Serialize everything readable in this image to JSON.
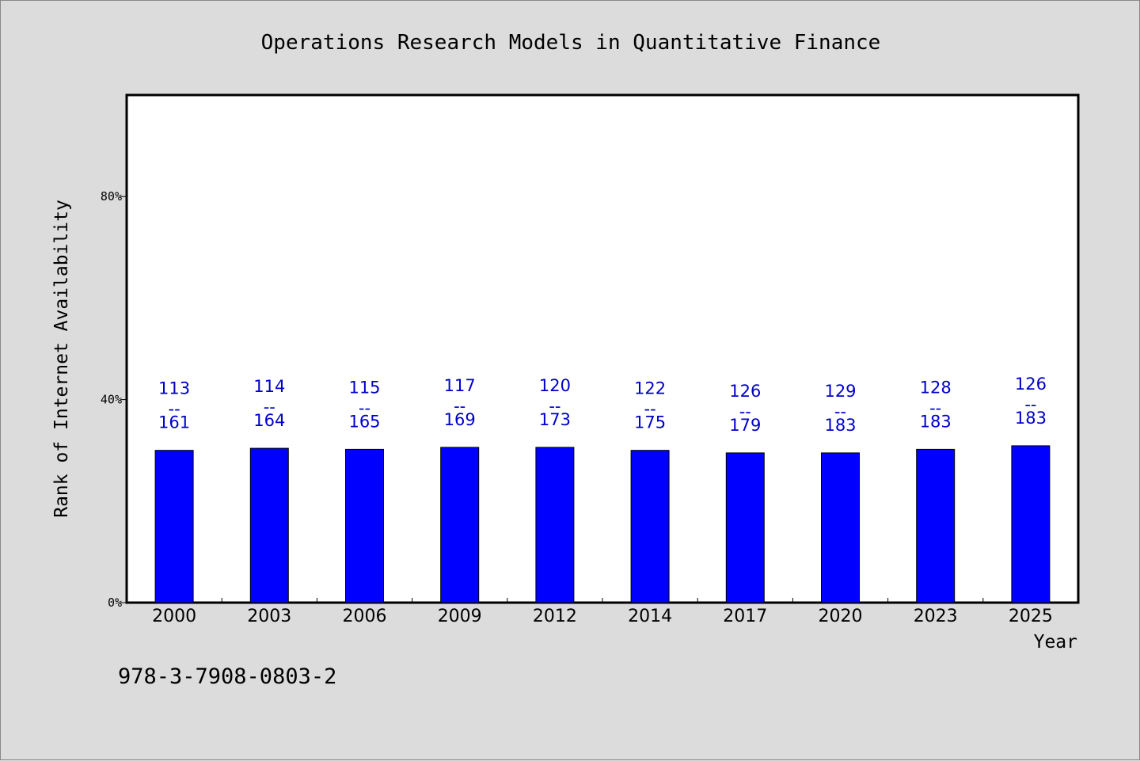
{
  "chart_data": {
    "type": "bar",
    "title": "Operations Research Models in Quantitative Finance",
    "xlabel": "Year",
    "ylabel": "Rank of Internet Availability",
    "categories": [
      "2000",
      "2003",
      "2006",
      "2009",
      "2012",
      "2014",
      "2017",
      "2020",
      "2023",
      "2025"
    ],
    "series": [
      {
        "values": [
          30.0,
          30.4,
          30.2,
          30.6,
          30.6,
          30.0,
          29.5,
          29.5,
          30.2,
          30.9
        ]
      }
    ],
    "data_labels": [
      {
        "top": "113",
        "sep": "--",
        "bottom": "161"
      },
      {
        "top": "114",
        "sep": "--",
        "bottom": "164"
      },
      {
        "top": "115",
        "sep": "--",
        "bottom": "165"
      },
      {
        "top": "117",
        "sep": "--",
        "bottom": "169"
      },
      {
        "top": "120",
        "sep": "--",
        "bottom": "173"
      },
      {
        "top": "122",
        "sep": "--",
        "bottom": "175"
      },
      {
        "top": "126",
        "sep": "--",
        "bottom": "179"
      },
      {
        "top": "129",
        "sep": "--",
        "bottom": "183"
      },
      {
        "top": "128",
        "sep": "--",
        "bottom": "183"
      },
      {
        "top": "126",
        "sep": "--",
        "bottom": "183"
      }
    ],
    "ylim": [
      0,
      100
    ],
    "yticks": [
      0,
      40,
      80
    ],
    "ytick_labels": [
      "0%",
      "40%",
      "80%"
    ],
    "grid": false,
    "legend": "none",
    "colors": {
      "bar": "#0000ff",
      "bar_edge": "#000000",
      "data_label": "#0000cc",
      "background": "#dcdcdc",
      "plot_area": "#ffffff"
    }
  },
  "footer": {
    "isbn": "978-3-7908-0803-2"
  }
}
